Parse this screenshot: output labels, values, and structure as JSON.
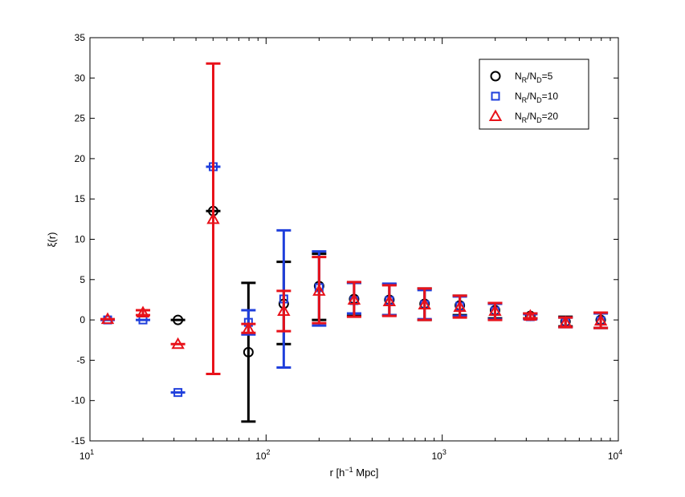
{
  "chart_data": {
    "type": "scatter",
    "title": "",
    "xlabel": "r  [h",
    "xlabel_sup": "−1",
    "xlabel_tail": " Mpc]",
    "ylabel": "ξ(r)",
    "xscale": "log",
    "xlim": [
      10,
      10000
    ],
    "ylim": [
      -15,
      35
    ],
    "grid": false,
    "legend_position": "top-right",
    "x_ticks": [
      {
        "base": "10",
        "exp": "1",
        "value": 10
      },
      {
        "base": "10",
        "exp": "2",
        "value": 100
      },
      {
        "base": "10",
        "exp": "3",
        "value": 1000
      },
      {
        "base": "10",
        "exp": "4",
        "value": 10000
      }
    ],
    "y_ticks": [
      "-15",
      "-10",
      "-5",
      "0",
      "5",
      "10",
      "15",
      "20",
      "25",
      "30",
      "35"
    ],
    "series": [
      {
        "name": "N_R/N_D=5",
        "legend_main": "N",
        "legend_sub1": "R",
        "legend_mid": "/N",
        "legend_sub2": "D",
        "legend_tail": "=5",
        "marker": "circle",
        "color": "#000000",
        "points": [
          {
            "x": 31.6,
            "y": 0.0,
            "lo": 0.0,
            "hi": 0.0
          },
          {
            "x": 50.1,
            "y": 13.5,
            "lo": 13.5,
            "hi": 13.5
          },
          {
            "x": 79.4,
            "y": -4.0,
            "lo": -12.6,
            "hi": 4.6
          },
          {
            "x": 126,
            "y": 2.0,
            "lo": -3.0,
            "hi": 7.2
          },
          {
            "x": 200,
            "y": 4.2,
            "lo": 0.0,
            "hi": 8.2
          },
          {
            "x": 316,
            "y": 2.6,
            "lo": 0.5,
            "hi": 4.6
          },
          {
            "x": 501,
            "y": 2.5,
            "lo": 0.6,
            "hi": 4.4
          },
          {
            "x": 794,
            "y": 2.0,
            "lo": 0.0,
            "hi": 3.9
          },
          {
            "x": 1259,
            "y": 1.8,
            "lo": 0.6,
            "hi": 3.0
          },
          {
            "x": 1995,
            "y": 1.2,
            "lo": 0.2,
            "hi": 2.1
          },
          {
            "x": 3162,
            "y": 0.5,
            "lo": 0.2,
            "hi": 0.8
          },
          {
            "x": 5012,
            "y": -0.2,
            "lo": -0.8,
            "hi": 0.4
          },
          {
            "x": 7943,
            "y": 0.0,
            "lo": -1.0,
            "hi": 0.9
          }
        ]
      },
      {
        "name": "N_R/N_D=10",
        "legend_main": "N",
        "legend_sub1": "R",
        "legend_mid": "/N",
        "legend_sub2": "D",
        "legend_tail": "=10",
        "marker": "square",
        "color": "#1f3fdc",
        "points": [
          {
            "x": 12.6,
            "y": 0.0,
            "lo": 0.0,
            "hi": 0.0
          },
          {
            "x": 20.0,
            "y": 0.0,
            "lo": 0.0,
            "hi": 0.0
          },
          {
            "x": 31.6,
            "y": -9.0,
            "lo": -9.0,
            "hi": -9.0
          },
          {
            "x": 50.1,
            "y": 19.0,
            "lo": 19.0,
            "hi": 19.0
          },
          {
            "x": 79.4,
            "y": -0.3,
            "lo": -1.8,
            "hi": 1.2
          },
          {
            "x": 126,
            "y": 2.6,
            "lo": -5.9,
            "hi": 11.1
          },
          {
            "x": 200,
            "y": 4.0,
            "lo": -0.7,
            "hi": 8.5
          },
          {
            "x": 316,
            "y": 2.4,
            "lo": 0.8,
            "hi": 4.6
          },
          {
            "x": 501,
            "y": 2.4,
            "lo": 0.6,
            "hi": 4.5
          },
          {
            "x": 794,
            "y": 1.9,
            "lo": 0.1,
            "hi": 3.7
          },
          {
            "x": 1259,
            "y": 1.7,
            "lo": 0.5,
            "hi": 2.9
          },
          {
            "x": 1995,
            "y": 1.1,
            "lo": 0.1,
            "hi": 2.0
          },
          {
            "x": 3162,
            "y": 0.4,
            "lo": 0.1,
            "hi": 0.7
          },
          {
            "x": 5012,
            "y": -0.3,
            "lo": -0.9,
            "hi": 0.3
          },
          {
            "x": 7943,
            "y": -0.1,
            "lo": -1.0,
            "hi": 0.8
          }
        ]
      },
      {
        "name": "N_R/N_D=20",
        "legend_main": "N",
        "legend_sub1": "R",
        "legend_mid": "/N",
        "legend_sub2": "D",
        "legend_tail": "=20",
        "marker": "triangle",
        "color": "#e8121a",
        "points": [
          {
            "x": 12.6,
            "y": 0.1,
            "lo": 0.1,
            "hi": 0.1
          },
          {
            "x": 20.0,
            "y": 0.9,
            "lo": 0.6,
            "hi": 1.2
          },
          {
            "x": 31.6,
            "y": -3.0,
            "lo": -3.0,
            "hi": -3.0
          },
          {
            "x": 50.1,
            "y": 12.5,
            "lo": -6.7,
            "hi": 31.8
          },
          {
            "x": 79.4,
            "y": -1.1,
            "lo": -1.6,
            "hi": -0.5
          },
          {
            "x": 126,
            "y": 1.1,
            "lo": -1.4,
            "hi": 3.6
          },
          {
            "x": 200,
            "y": 3.6,
            "lo": -0.4,
            "hi": 7.8
          },
          {
            "x": 316,
            "y": 2.5,
            "lo": 0.4,
            "hi": 4.7
          },
          {
            "x": 501,
            "y": 2.3,
            "lo": 0.5,
            "hi": 4.3
          },
          {
            "x": 794,
            "y": 1.9,
            "lo": 0.0,
            "hi": 3.9
          },
          {
            "x": 1259,
            "y": 1.6,
            "lo": 0.3,
            "hi": 3.0
          },
          {
            "x": 1995,
            "y": 1.1,
            "lo": 0.0,
            "hi": 2.1
          },
          {
            "x": 3162,
            "y": 0.5,
            "lo": 0.2,
            "hi": 0.8
          },
          {
            "x": 5012,
            "y": -0.3,
            "lo": -0.9,
            "hi": 0.3
          },
          {
            "x": 7943,
            "y": -0.1,
            "lo": -1.0,
            "hi": 0.9
          }
        ]
      }
    ]
  }
}
